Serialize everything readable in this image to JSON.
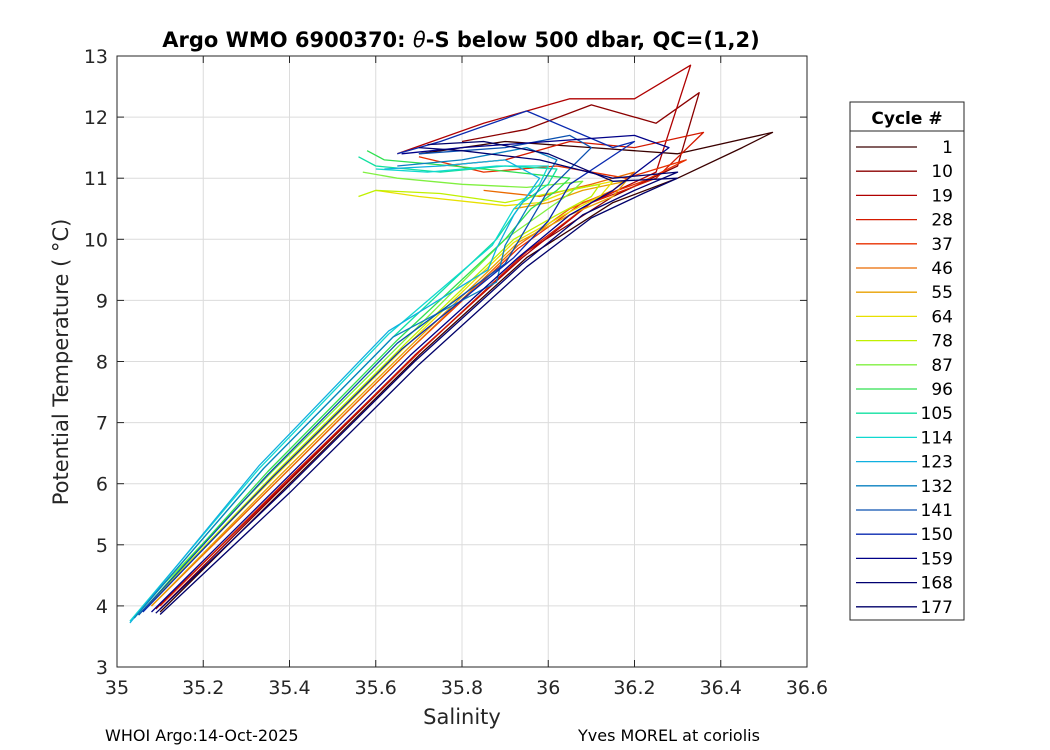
{
  "chart_data": {
    "type": "line",
    "title": "Argo WMO 6900370: θ-S below 500 dbar,  QC=(1,2)",
    "title_parts": {
      "prefix": "Argo WMO 6900370: ",
      "symbol": "θ",
      "suffix": "-S below 500 dbar,  QC=(1,2)"
    },
    "xlabel": "Salinity",
    "ylabel": "Potential Temperature ( °C)",
    "xlim": [
      35,
      36.6
    ],
    "ylim": [
      3,
      13
    ],
    "xticks": [
      35,
      35.2,
      35.4,
      35.6,
      35.8,
      36,
      36.2,
      36.4,
      36.6
    ],
    "xtick_labels": [
      "35",
      "35.2",
      "35.4",
      "35.6",
      "35.8",
      "36",
      "36.2",
      "36.4",
      "36.6"
    ],
    "yticks": [
      3,
      4,
      5,
      6,
      7,
      8,
      9,
      10,
      11,
      12,
      13
    ],
    "ytick_labels": [
      "3",
      "4",
      "5",
      "6",
      "7",
      "8",
      "9",
      "10",
      "11",
      "12",
      "13"
    ],
    "grid": true,
    "legend": {
      "title": "Cycle #",
      "placement": "outside-right",
      "entries": [
        {
          "label": "1",
          "color": "#3a0000"
        },
        {
          "label": "10",
          "color": "#8b0000"
        },
        {
          "label": "19",
          "color": "#b00000"
        },
        {
          "label": "28",
          "color": "#d41a00"
        },
        {
          "label": "37",
          "color": "#e83000"
        },
        {
          "label": "46",
          "color": "#ea6a00"
        },
        {
          "label": "55",
          "color": "#e8a000"
        },
        {
          "label": "64",
          "color": "#e8e000"
        },
        {
          "label": "78",
          "color": "#c0f000"
        },
        {
          "label": "87",
          "color": "#80f040"
        },
        {
          "label": "96",
          "color": "#30e050"
        },
        {
          "label": "105",
          "color": "#10e0a0"
        },
        {
          "label": "114",
          "color": "#10d8d0"
        },
        {
          "label": "123",
          "color": "#10b0e0"
        },
        {
          "label": "132",
          "color": "#0a80c0"
        },
        {
          "label": "141",
          "color": "#0a50b0"
        },
        {
          "label": "150",
          "color": "#0a2ab0"
        },
        {
          "label": "159",
          "color": "#000088"
        },
        {
          "label": "168",
          "color": "#000070"
        },
        {
          "label": "177",
          "color": "#00006a"
        }
      ]
    },
    "series": [
      {
        "color": "#3a0000",
        "x": [
          35.1,
          35.4,
          35.7,
          35.95,
          36.15,
          36.3,
          36.45,
          36.52,
          36.3,
          36.1,
          35.9,
          35.7
        ],
        "y": [
          3.9,
          6.0,
          8.1,
          9.7,
          10.6,
          11.0,
          11.5,
          11.75,
          11.4,
          11.5,
          11.6,
          11.4
        ]
      },
      {
        "color": "#8b0000",
        "x": [
          35.1,
          35.4,
          35.7,
          35.95,
          36.15,
          36.3,
          36.35,
          36.25,
          36.1,
          35.95,
          35.8
        ],
        "y": [
          3.95,
          6.05,
          8.15,
          9.8,
          10.7,
          11.2,
          12.4,
          11.9,
          12.2,
          11.8,
          11.6
        ]
      },
      {
        "color": "#b00000",
        "x": [
          35.09,
          35.39,
          35.69,
          35.94,
          36.1,
          36.25,
          36.33,
          36.2,
          36.05,
          35.85,
          35.65
        ],
        "y": [
          3.95,
          6.0,
          8.1,
          9.7,
          10.6,
          11.1,
          12.85,
          12.3,
          12.3,
          11.9,
          11.4
        ]
      },
      {
        "color": "#d41a00",
        "x": [
          35.1,
          35.4,
          35.7,
          35.95,
          36.1,
          36.25,
          36.36,
          36.2,
          36.05,
          35.9,
          35.75
        ],
        "y": [
          4.0,
          6.1,
          8.15,
          9.8,
          10.6,
          11.0,
          11.75,
          11.5,
          11.6,
          11.3,
          11.2
        ]
      },
      {
        "color": "#e83000",
        "x": [
          35.08,
          35.38,
          35.68,
          35.93,
          36.08,
          36.22,
          36.32,
          36.18,
          36.02,
          35.85,
          35.7
        ],
        "y": [
          4.0,
          6.1,
          8.2,
          9.85,
          10.6,
          10.95,
          11.3,
          11.0,
          11.2,
          11.1,
          11.35
        ]
      },
      {
        "color": "#ea6a00",
        "x": [
          35.08,
          35.38,
          35.68,
          35.93,
          36.05,
          36.15,
          36.2,
          36.1,
          35.98,
          35.85
        ],
        "y": [
          4.0,
          6.1,
          8.2,
          9.9,
          10.5,
          10.8,
          11.1,
          10.9,
          10.7,
          10.8
        ]
      },
      {
        "color": "#e8a000",
        "x": [
          35.08,
          35.38,
          35.68,
          35.93,
          36.05,
          36.15,
          36.18,
          36.08,
          36.0,
          35.92
        ],
        "y": [
          4.0,
          6.15,
          8.25,
          9.95,
          10.4,
          10.7,
          10.95,
          10.8,
          10.6,
          10.5
        ]
      },
      {
        "color": "#e8e000",
        "x": [
          35.07,
          35.37,
          35.67,
          35.92,
          36.05,
          36.12,
          36.15,
          36.05,
          35.98,
          35.9,
          35.7,
          35.6
        ],
        "y": [
          4.0,
          6.15,
          8.25,
          9.95,
          10.45,
          10.7,
          10.95,
          10.8,
          10.6,
          10.55,
          10.7,
          10.8
        ]
      },
      {
        "color": "#c0f000",
        "x": [
          35.07,
          35.37,
          35.67,
          35.92,
          36.02,
          36.1,
          36.12,
          36.0,
          35.9,
          35.75,
          35.6,
          35.56
        ],
        "y": [
          4.0,
          6.2,
          8.3,
          10.0,
          10.4,
          10.7,
          10.9,
          10.75,
          10.6,
          10.75,
          10.8,
          10.7
        ]
      },
      {
        "color": "#80f040",
        "x": [
          35.06,
          35.36,
          35.66,
          35.9,
          35.98,
          36.05,
          36.08,
          35.95,
          35.8,
          35.65,
          35.57
        ],
        "y": [
          4.0,
          6.2,
          8.3,
          10.0,
          10.4,
          10.75,
          10.95,
          10.85,
          10.9,
          11.0,
          11.1
        ]
      },
      {
        "color": "#30e050",
        "x": [
          35.05,
          35.35,
          35.65,
          35.9,
          35.96,
          36.02,
          36.05,
          35.92,
          35.78,
          35.62,
          35.58
        ],
        "y": [
          3.85,
          6.2,
          8.35,
          10.0,
          10.5,
          10.8,
          11.0,
          11.1,
          11.2,
          11.3,
          11.45
        ]
      },
      {
        "color": "#10e0a0",
        "x": [
          35.04,
          35.34,
          35.64,
          35.88,
          35.94,
          36.0,
          36.02,
          35.9,
          35.75,
          35.6,
          35.56
        ],
        "y": [
          3.8,
          6.25,
          8.4,
          10.0,
          10.6,
          10.9,
          11.15,
          11.2,
          11.1,
          11.2,
          11.35
        ]
      },
      {
        "color": "#10d8d0",
        "x": [
          35.03,
          35.33,
          35.63,
          35.87,
          35.92,
          35.98,
          36.0,
          35.88,
          35.72,
          35.6
        ],
        "y": [
          3.75,
          6.25,
          8.45,
          9.9,
          10.5,
          10.9,
          11.2,
          11.2,
          11.1,
          11.15
        ]
      },
      {
        "color": "#10b0e0",
        "x": [
          35.03,
          35.33,
          35.63,
          35.86,
          35.88,
          35.92,
          35.98,
          35.9,
          35.75,
          35.62
        ],
        "y": [
          3.72,
          6.3,
          8.5,
          9.5,
          9.85,
          10.4,
          11.0,
          11.3,
          11.2,
          11.15
        ]
      },
      {
        "color": "#0a80c0",
        "x": [
          35.04,
          35.34,
          35.64,
          35.88,
          35.9,
          35.95,
          36.02,
          35.95,
          35.8,
          35.65
        ],
        "y": [
          3.8,
          6.25,
          8.4,
          9.3,
          9.9,
          10.5,
          11.3,
          11.5,
          11.3,
          11.2
        ]
      },
      {
        "color": "#0a50b0",
        "x": [
          35.05,
          35.35,
          35.65,
          35.9,
          35.95,
          36.0,
          36.1,
          36.05,
          35.9,
          35.7
        ],
        "y": [
          3.85,
          6.15,
          8.3,
          9.6,
          10.2,
          10.8,
          11.5,
          11.7,
          11.5,
          11.4
        ]
      },
      {
        "color": "#0a2ab0",
        "x": [
          35.06,
          35.36,
          35.66,
          35.92,
          36.0,
          36.05,
          36.2,
          36.15,
          35.95,
          35.75,
          35.65
        ],
        "y": [
          3.9,
          6.1,
          8.2,
          9.7,
          10.3,
          10.9,
          11.6,
          11.5,
          12.1,
          11.6,
          11.4
        ]
      },
      {
        "color": "#000088",
        "x": [
          35.08,
          35.38,
          35.68,
          35.93,
          36.05,
          36.15,
          36.28,
          36.2,
          36.0,
          35.8,
          35.66
        ],
        "y": [
          3.9,
          6.0,
          8.1,
          9.7,
          10.4,
          10.8,
          11.5,
          11.7,
          11.6,
          11.5,
          11.4
        ]
      },
      {
        "color": "#000070",
        "x": [
          35.09,
          35.39,
          35.69,
          35.94,
          36.08,
          36.2,
          36.3,
          36.15,
          35.98,
          35.8,
          35.7
        ],
        "y": [
          3.88,
          5.9,
          8.0,
          9.6,
          10.4,
          10.8,
          11.1,
          11.0,
          11.3,
          11.45,
          11.5
        ]
      },
      {
        "color": "#00006a",
        "x": [
          35.1,
          35.4,
          35.7,
          35.95,
          36.1,
          36.22,
          36.3,
          36.15,
          36.0,
          35.85,
          35.72
        ],
        "y": [
          3.86,
          5.85,
          7.95,
          9.55,
          10.35,
          10.75,
          11.0,
          10.95,
          11.4,
          11.6,
          11.55
        ]
      }
    ]
  },
  "footer": {
    "left": "WHOI Argo:14-Oct-2025",
    "right": "Yves MOREL at coriolis"
  }
}
